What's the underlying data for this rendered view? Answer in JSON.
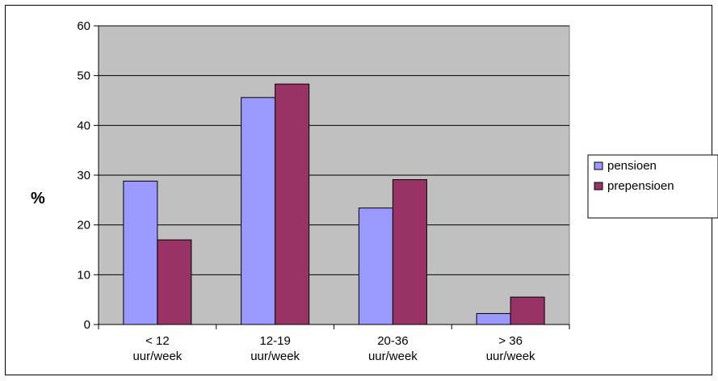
{
  "chart_data": {
    "type": "bar",
    "title": "",
    "xlabel": "",
    "ylabel": "%",
    "ylim": [
      0,
      60
    ],
    "yticks": [
      0,
      10,
      20,
      30,
      40,
      50,
      60
    ],
    "categories": [
      [
        "< 12",
        "uur/week"
      ],
      [
        "12-19",
        "uur/week"
      ],
      [
        "20-36",
        "uur/week"
      ],
      [
        "> 36",
        "uur/week"
      ]
    ],
    "series": [
      {
        "name": "pensioen",
        "color": "#9999ff",
        "values": [
          28.8,
          45.6,
          23.4,
          2.2
        ]
      },
      {
        "name": "prepensioen",
        "color": "#993366",
        "values": [
          17.0,
          48.3,
          29.1,
          5.5
        ]
      }
    ],
    "grid": true,
    "legend_position": "right",
    "plot_background": "#c0c0c0"
  }
}
